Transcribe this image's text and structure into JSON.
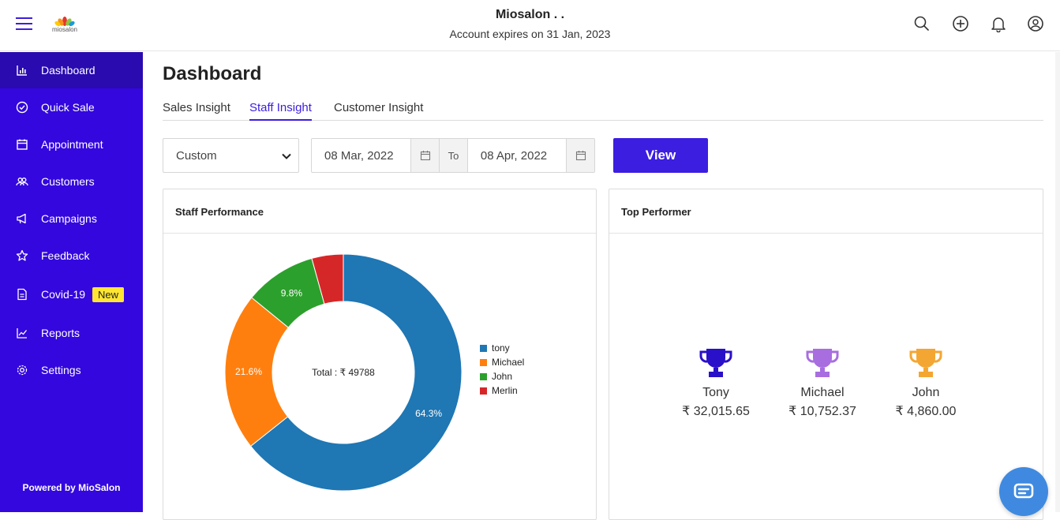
{
  "app": {
    "title": "Miosalon . .",
    "subtitle": "Account expires on 31 Jan, 2023",
    "logo_text": "miosalon",
    "accent": "#3b1ee0",
    "sidebar_bg": "#3407de"
  },
  "header_icons": [
    "search-icon",
    "add-circle-icon",
    "bell-icon",
    "user-icon"
  ],
  "sidebar": {
    "items": [
      {
        "label": "Dashboard",
        "icon": "bar-chart-icon"
      },
      {
        "label": "Quick Sale",
        "icon": "check-circle-icon"
      },
      {
        "label": "Appointment",
        "icon": "calendar-icon"
      },
      {
        "label": "Customers",
        "icon": "users-icon"
      },
      {
        "label": "Campaigns",
        "icon": "megaphone-icon"
      },
      {
        "label": "Feedback",
        "icon": "star-icon"
      },
      {
        "label": "Covid-19",
        "icon": "document-icon",
        "badge": "New"
      },
      {
        "label": "Reports",
        "icon": "trend-icon"
      },
      {
        "label": "Settings",
        "icon": "gear-icon"
      }
    ],
    "powered_by": "Powered by MioSalon"
  },
  "main": {
    "title": "Dashboard",
    "tabs": [
      {
        "label": "Sales Insight"
      },
      {
        "label": "Staff Insight"
      },
      {
        "label": "Customer Insight"
      }
    ],
    "active_tab": "Staff Insight",
    "filter": {
      "range_value": "Custom",
      "from_date": "08 Mar, 2022",
      "to_label": "To",
      "to_date": "08 Apr, 2022",
      "view_label": "View"
    }
  },
  "staff_card": {
    "title": "Staff Performance",
    "center_text": "Total : ₹ 49788"
  },
  "chart_data": {
    "type": "pie",
    "categories": [
      "tony",
      "Michael",
      "John",
      "Merlin"
    ],
    "values": [
      64.3,
      21.6,
      9.8,
      4.3
    ],
    "data_labels": [
      "64.3%",
      "21.6%",
      "9.8%",
      ""
    ],
    "colors": [
      "#1f77b4",
      "#ff7f0e",
      "#2ca02c",
      "#d62728"
    ],
    "donut": true,
    "legend_position": "right"
  },
  "top_card": {
    "title": "Top Performer",
    "performers": [
      {
        "name": "Tony",
        "amount": "₹ 32,015.65",
        "color": "#2a10c9"
      },
      {
        "name": "Michael",
        "amount": "₹ 10,752.37",
        "color": "#a86ee0"
      },
      {
        "name": "John",
        "amount": "₹ 4,860.00",
        "color": "#f4a632"
      }
    ]
  },
  "chat_icon": "chat-icon"
}
